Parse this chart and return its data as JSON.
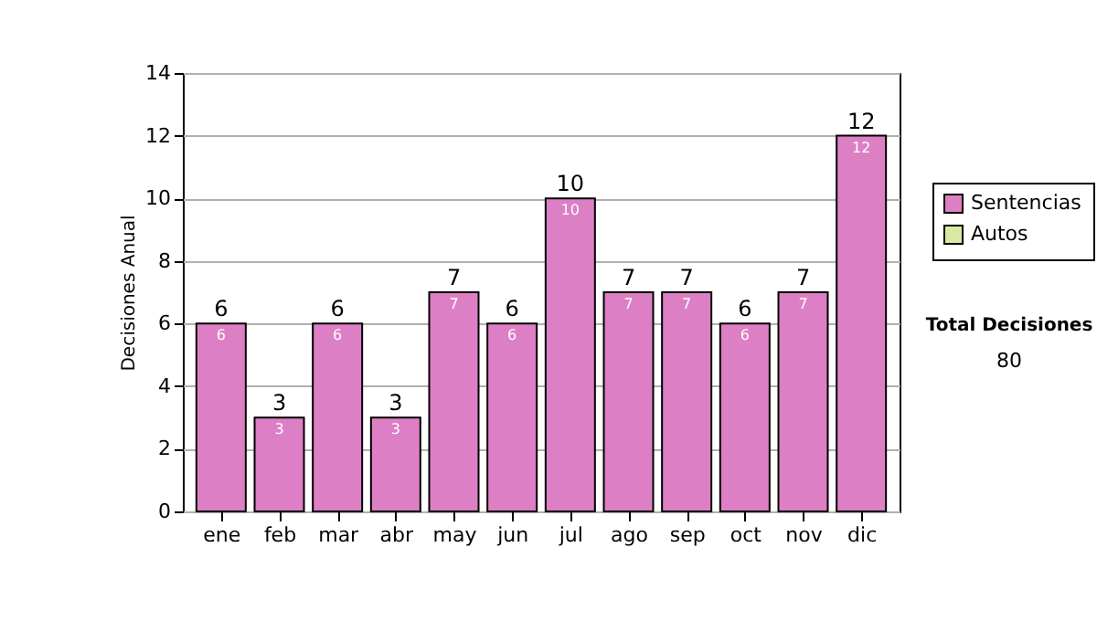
{
  "chart_data": {
    "type": "bar",
    "ylabel": "Decisiones Anual",
    "categories": [
      "ene",
      "feb",
      "mar",
      "abr",
      "may",
      "jun",
      "jul",
      "ago",
      "sep",
      "oct",
      "nov",
      "dic"
    ],
    "series": [
      {
        "name": "Sentencias",
        "color": "#dd7fc4",
        "values": [
          6,
          3,
          6,
          3,
          7,
          6,
          10,
          7,
          7,
          6,
          7,
          12
        ]
      },
      {
        "name": "Autos",
        "color": "#d8eaa2",
        "values": [
          null,
          null,
          null,
          null,
          null,
          null,
          null,
          null,
          null,
          null,
          null,
          null
        ]
      }
    ],
    "stacked": true,
    "data_labels": true,
    "totals": [
      "6",
      "3",
      "6",
      "3",
      "7",
      "6",
      "10",
      "7",
      "7",
      "6",
      "7",
      "12"
    ],
    "ylim": [
      0,
      14
    ],
    "yticks": [
      0,
      2,
      4,
      6,
      8,
      10,
      12,
      14
    ],
    "grid": "y",
    "legend": "right",
    "annotations": [
      "Total Decisiones",
      "80"
    ]
  }
}
